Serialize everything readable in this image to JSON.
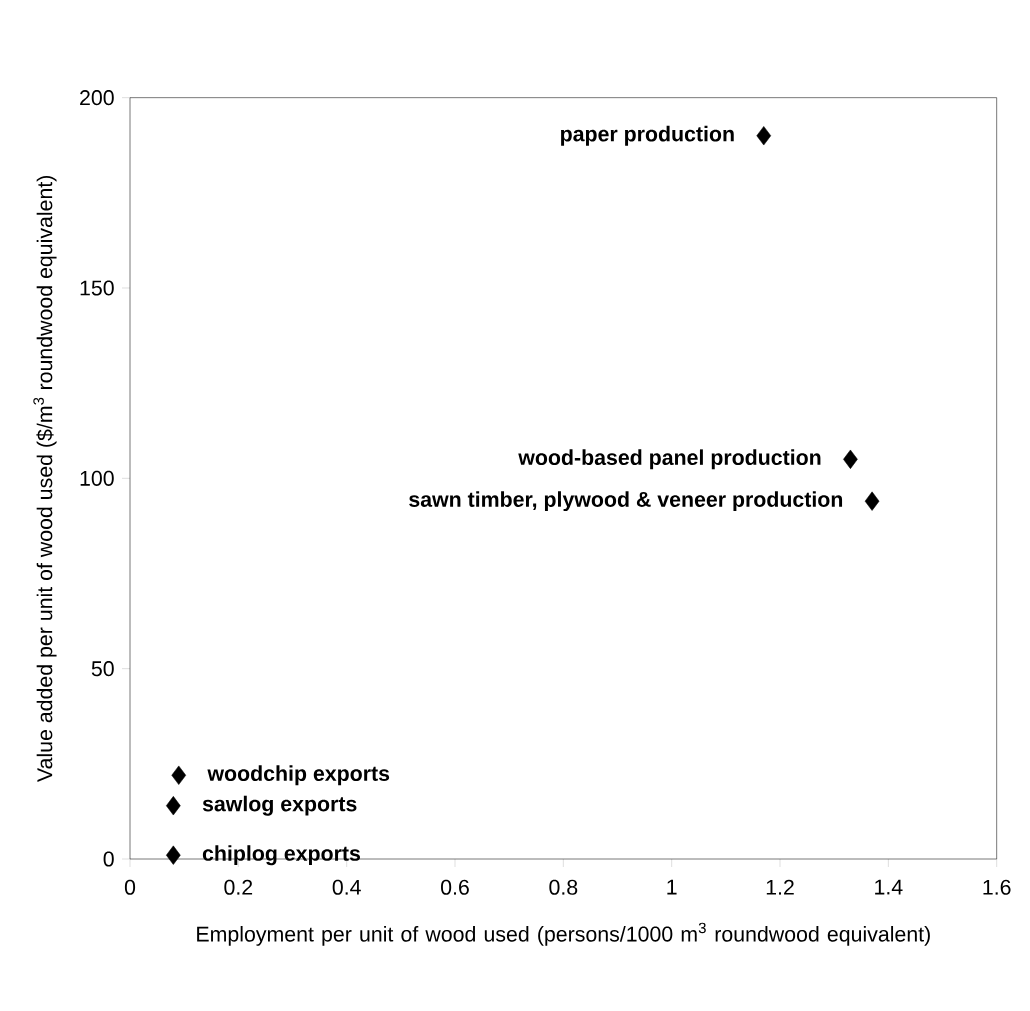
{
  "chart_data": {
    "type": "scatter",
    "xlabel": "Employment per unit of wood used (persons/1000 m$^{3}$ roundwood equivalent)",
    "ylabel": "Value added per unit of wood used ($/m$^{3}$ roundwood equivalent)",
    "x": [
      1.17,
      1.33,
      1.37,
      0.09,
      0.08,
      0.08
    ],
    "series": [
      {
        "color": "#000000",
        "values": [
          190,
          105,
          94,
          22,
          14,
          1
        ]
      }
    ],
    "xlim": [
      0,
      1.6
    ],
    "ylim": [
      0,
      200
    ],
    "xticks": [
      0,
      0.2,
      0.4,
      0.6,
      0.8,
      1,
      1.2,
      1.4,
      1.6
    ],
    "yticks": [
      0,
      50,
      100,
      150,
      200
    ],
    "marker": "diamond",
    "annotations": [
      {
        "text": "paper production",
        "x": 1.17,
        "y": 190
      },
      {
        "text": "wood-based panel production",
        "x": 1.33,
        "y": 105
      },
      {
        "text": "sawn timber, plywood & veneer production",
        "x": 1.37,
        "y": 94
      },
      {
        "text": "woodchip exports",
        "x": 0.09,
        "y": 22
      },
      {
        "text": "sawlog exports",
        "x": 0.08,
        "y": 14
      },
      {
        "text": "chiplog exports",
        "x": 0.08,
        "y": 1
      }
    ]
  }
}
